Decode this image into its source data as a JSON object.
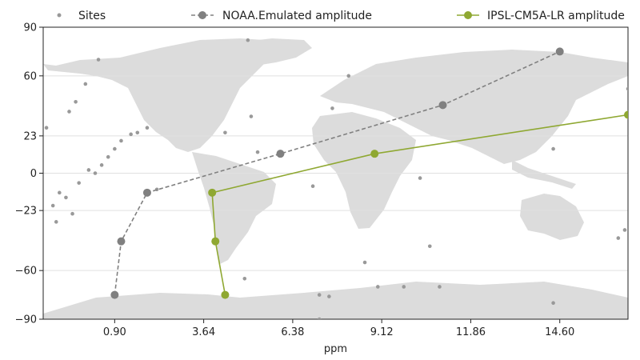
{
  "chart_data": {
    "type": "line",
    "xlabel": "ppm",
    "ylabel": "",
    "xlim": [
      -1.3,
      16.7
    ],
    "ylim": [
      -90,
      90
    ],
    "x_ticks": [
      "0.90",
      "3.64",
      "6.38",
      "9.12",
      "11.86",
      "14.60"
    ],
    "y_ticks": [
      "90",
      "60",
      "23",
      "0",
      "−23",
      "−60",
      "−90"
    ],
    "x_tick_values": [
      0.9,
      3.64,
      6.38,
      9.12,
      11.86,
      14.6
    ],
    "y_tick_values": [
      90,
      60,
      23,
      0,
      -23,
      -60,
      -90
    ],
    "grid": true,
    "legend_position": "top",
    "background": "world-map",
    "series": [
      {
        "name": "Sites",
        "style": "scatter",
        "color": "#999999",
        "x": [
          -1.2,
          -0.9,
          -0.6,
          -0.4,
          -1.0,
          -0.8,
          -0.2,
          0.1,
          0.3,
          0.5,
          0.7,
          0.9,
          1.1,
          1.4,
          1.6,
          1.9,
          0.4,
          0.0,
          -0.3,
          -0.5,
          2.2,
          4.3,
          5.1,
          5.3,
          4.9,
          7.0,
          7.6,
          8.1,
          10.3,
          10.6,
          7.5,
          9.0,
          14.4,
          16.4,
          16.6,
          14.4,
          16.7,
          5.0,
          7.2,
          9.8,
          7.2,
          8.6,
          10.9
        ],
        "y": [
          28,
          -30,
          -15,
          -25,
          -20,
          -12,
          -6,
          2,
          0,
          5,
          10,
          15,
          20,
          24,
          25,
          28,
          70,
          55,
          44,
          38,
          -10,
          25,
          35,
          13,
          -65,
          -8,
          40,
          60,
          -3,
          -45,
          -76,
          -70,
          15,
          -40,
          -35,
          -80,
          52,
          82,
          -90,
          -70,
          -75,
          -55,
          -70
        ]
      },
      {
        "name": "NOAA.Emulated amplitude",
        "style": "dashed",
        "color": "#808080",
        "x": [
          0.9,
          1.1,
          1.9,
          6.0,
          11.0,
          14.6
        ],
        "y": [
          -75,
          -42,
          -12,
          12,
          42,
          75
        ]
      },
      {
        "name": "IPSL-CM5A-LR amplitude",
        "style": "solid",
        "color": "#8fa832",
        "x": [
          4.3,
          4.0,
          3.9,
          8.9,
          16.7
        ],
        "y": [
          -75,
          -42,
          -12,
          12,
          36
        ]
      }
    ]
  }
}
